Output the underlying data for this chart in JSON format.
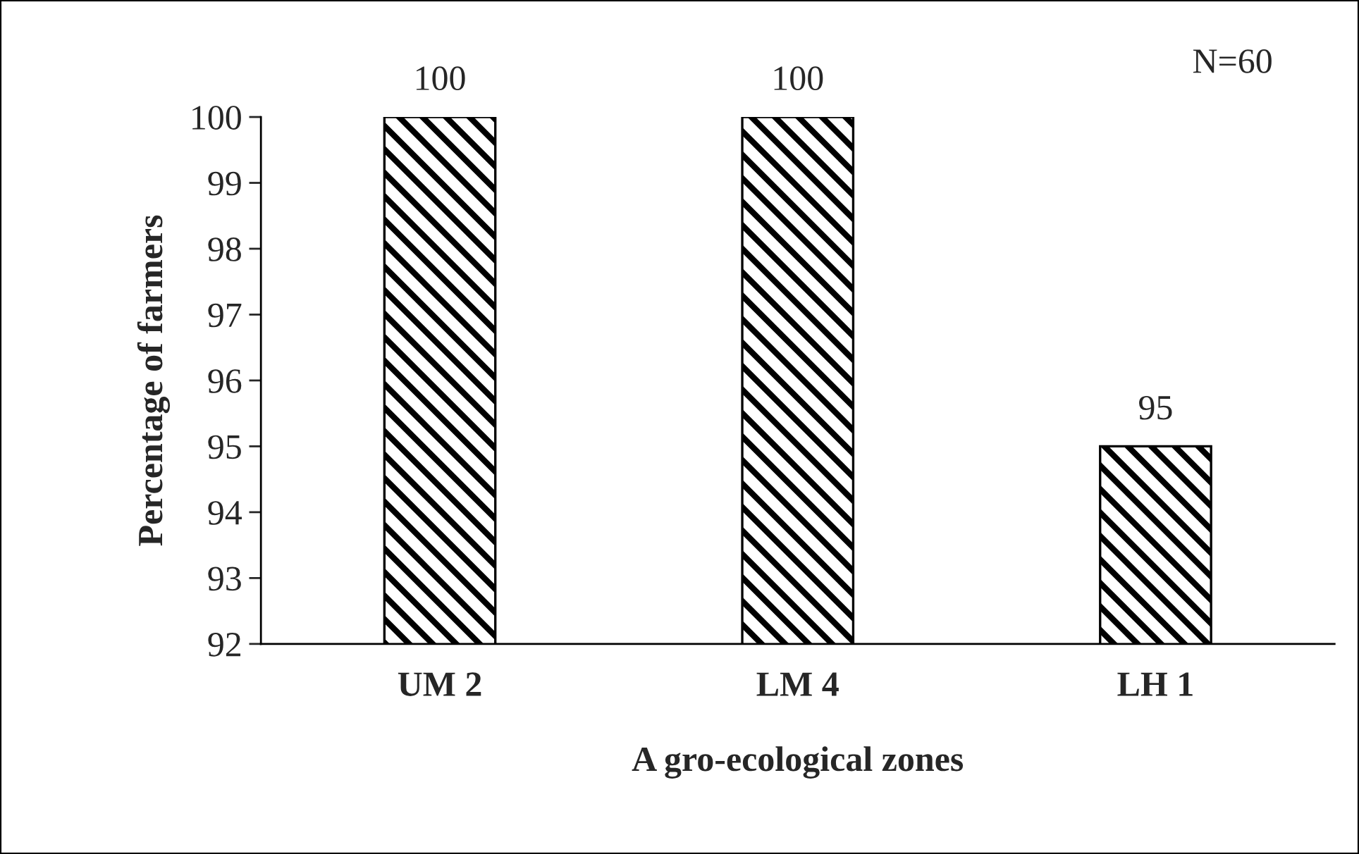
{
  "chart_data": {
    "type": "bar",
    "ylabel": "Percentage of farmers",
    "xlabel": "A gro-ecological zones",
    "categories": [
      "UM 2",
      "LM 4",
      "LH 1"
    ],
    "values": [
      100,
      100,
      95
    ],
    "color": "#000000",
    "ylim": [
      92,
      100
    ],
    "yticks": [
      92,
      93,
      94,
      95,
      96,
      97,
      98,
      99,
      100
    ],
    "data_labels": true,
    "grid": false,
    "legend": false,
    "annotations": [
      "N=60"
    ]
  }
}
